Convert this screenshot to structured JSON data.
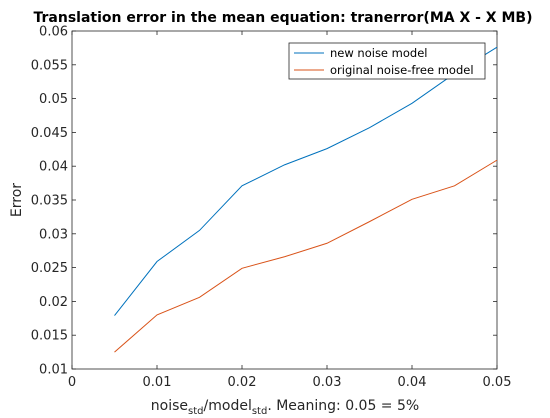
{
  "chart_data": {
    "type": "line",
    "title": "Translation error in the mean equation: tranerror(MA X - X MB)",
    "xlabel_parts": {
      "a": "noise",
      "a_sub": "std",
      "b": "/model",
      "b_sub": "std",
      "c": ". Meaning: 0.05 = 5%"
    },
    "ylabel": "Error",
    "xlim": [
      0,
      0.05
    ],
    "ylim": [
      0.01,
      0.06
    ],
    "x_ticks": [
      0,
      0.01,
      0.02,
      0.03,
      0.04,
      0.05
    ],
    "y_ticks": [
      0.01,
      0.015,
      0.02,
      0.025,
      0.03,
      0.035,
      0.04,
      0.045,
      0.05,
      0.055,
      0.06
    ],
    "x_tick_labels": [
      "0",
      "0.01",
      "0.02",
      "0.03",
      "0.04",
      "0.05"
    ],
    "y_tick_labels": [
      "0.01",
      "0.015",
      "0.02",
      "0.025",
      "0.03",
      "0.035",
      "0.04",
      "0.045",
      "0.05",
      "0.055",
      "0.06"
    ],
    "grid": false,
    "legend_position": "top-right",
    "x": [
      0.005,
      0.01,
      0.015,
      0.02,
      0.025,
      0.03,
      0.035,
      0.04,
      0.045,
      0.05
    ],
    "series": [
      {
        "name": "new noise model",
        "color": "#0072BD",
        "values": [
          0.0179,
          0.0259,
          0.0305,
          0.0371,
          0.0402,
          0.0426,
          0.0457,
          0.0493,
          0.0537,
          0.0576
        ]
      },
      {
        "name": "original noise-free model",
        "color": "#D95319",
        "values": [
          0.0125,
          0.018,
          0.0206,
          0.0249,
          0.0266,
          0.0286,
          0.0318,
          0.0351,
          0.0371,
          0.0409
        ]
      }
    ]
  }
}
